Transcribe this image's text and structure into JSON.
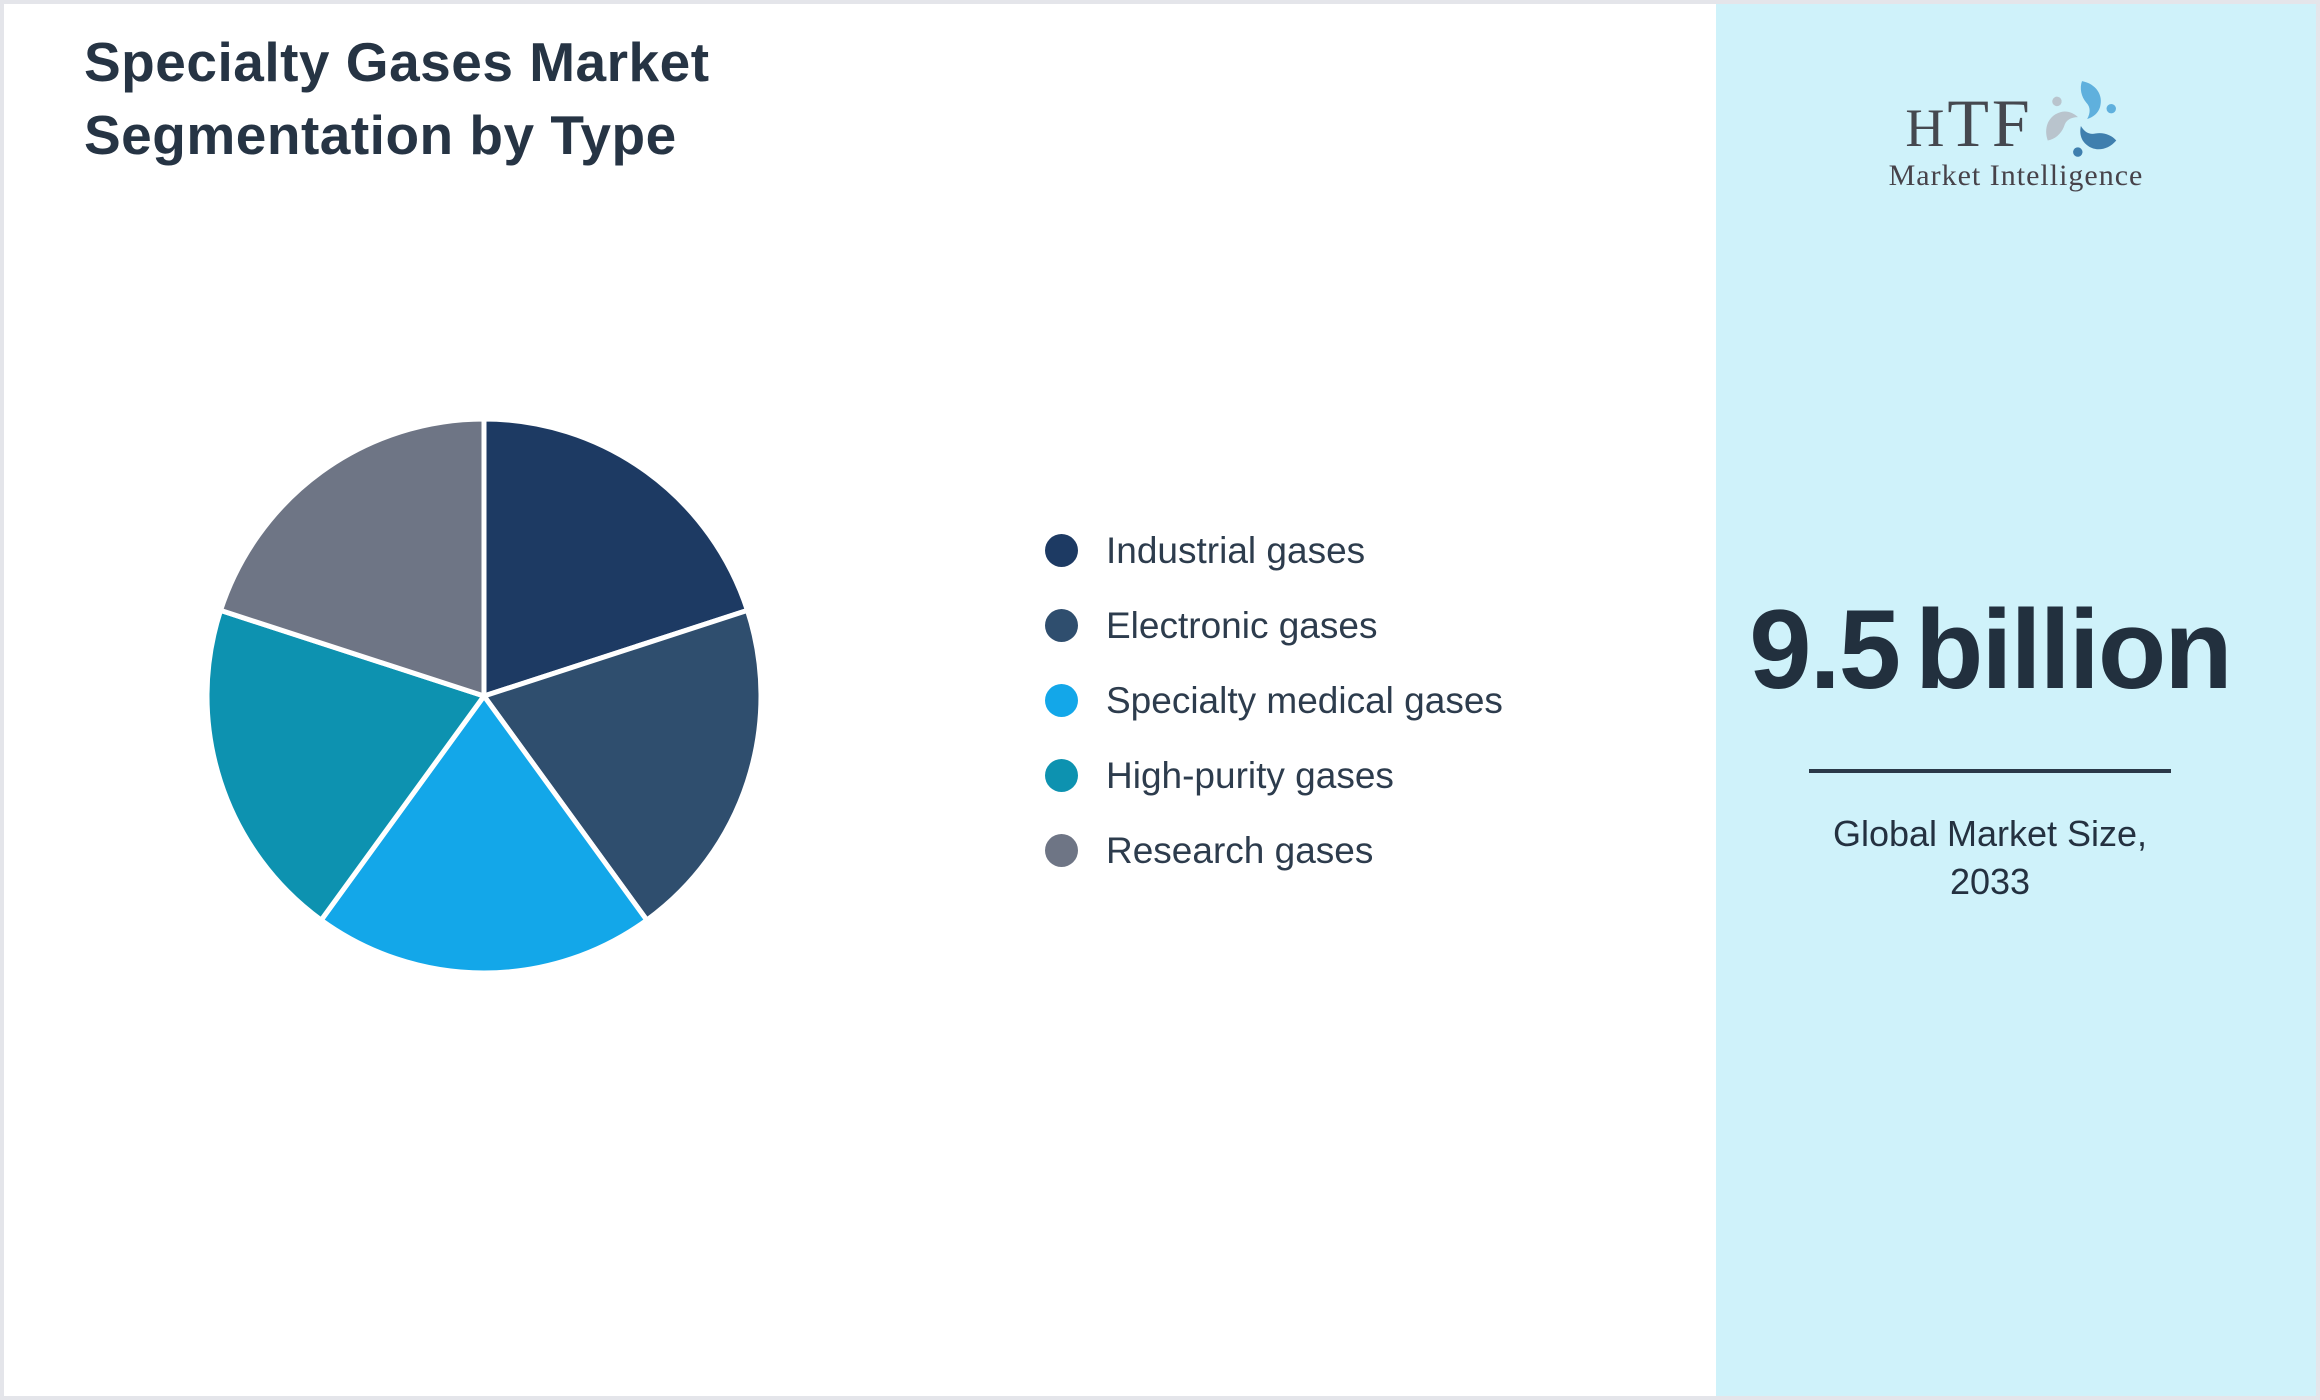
{
  "page": {
    "title_line1": "Specialty Gases Market",
    "title_line2": "Segmentation by Type"
  },
  "chart_data": {
    "type": "pie",
    "title": "Specialty Gases Market Segmentation by Type",
    "labels": [
      "Industrial gases",
      "Electronic gases",
      "Specialty medical gases",
      "High-purity gases",
      "Research gases"
    ],
    "values": [
      20,
      20,
      20,
      20,
      20
    ],
    "unit": "percent (equal segments, no data labels shown)",
    "colors": [
      "#1d3a63",
      "#2f4e6e",
      "#13a7e9",
      "#0d92b0",
      "#6e7585"
    ],
    "separator_color": "#ffffff",
    "start_angle_deg": -90,
    "direction": "clockwise",
    "legend_position": "right",
    "data_labels": false
  },
  "sidebar": {
    "background_color": "#cff2fa",
    "logo": {
      "text_h": "H",
      "text_tf": "TF",
      "subtext": "Market Intelligence",
      "emblem_colors": [
        "#5fb0dd",
        "#3f7fae",
        "#b9c4cd"
      ]
    },
    "market_size_value": "9.5",
    "market_size_unit": "billion",
    "caption_line1": "Global Market Size,",
    "caption_line2": "2033"
  },
  "theme": {
    "title_color": "#263444",
    "legend_text_color": "#2d3c4d",
    "big_number_color": "#22303e",
    "page_border_color": "#e4e5ea",
    "main_background": "#ffffff"
  }
}
